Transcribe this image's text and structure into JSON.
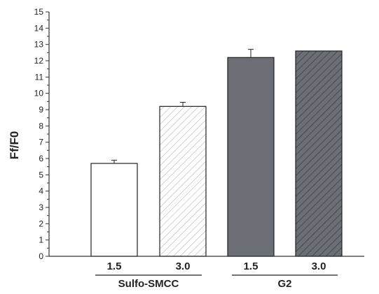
{
  "chart_data": {
    "type": "bar",
    "title": "",
    "xlabel": "",
    "ylabel": "Ff/F0",
    "ylim": [
      0,
      15
    ],
    "yticks": [
      0,
      1,
      2,
      3,
      4,
      5,
      6,
      7,
      8,
      9,
      10,
      11,
      12,
      13,
      14,
      15
    ],
    "grid": false,
    "categories": [
      "1.5",
      "3.0",
      "1.5",
      "3.0"
    ],
    "groups": [
      {
        "label": "Sulfo-SMCC",
        "categories": [
          0,
          1
        ]
      },
      {
        "label": "G2",
        "categories": [
          2,
          3
        ]
      }
    ],
    "values": [
      5.7,
      9.2,
      12.2,
      12.6
    ],
    "errors": [
      0.2,
      0.25,
      0.5,
      0
    ],
    "bar_styles": [
      {
        "fill": "#ffffff",
        "hatch": false
      },
      {
        "fill": "#ffffff",
        "hatch": true,
        "hatch_color": "#b5b5b5"
      },
      {
        "fill": "#6b6f75",
        "hatch": false
      },
      {
        "fill": "#6b6f75",
        "hatch": true,
        "hatch_color": "#3e4247"
      }
    ]
  }
}
